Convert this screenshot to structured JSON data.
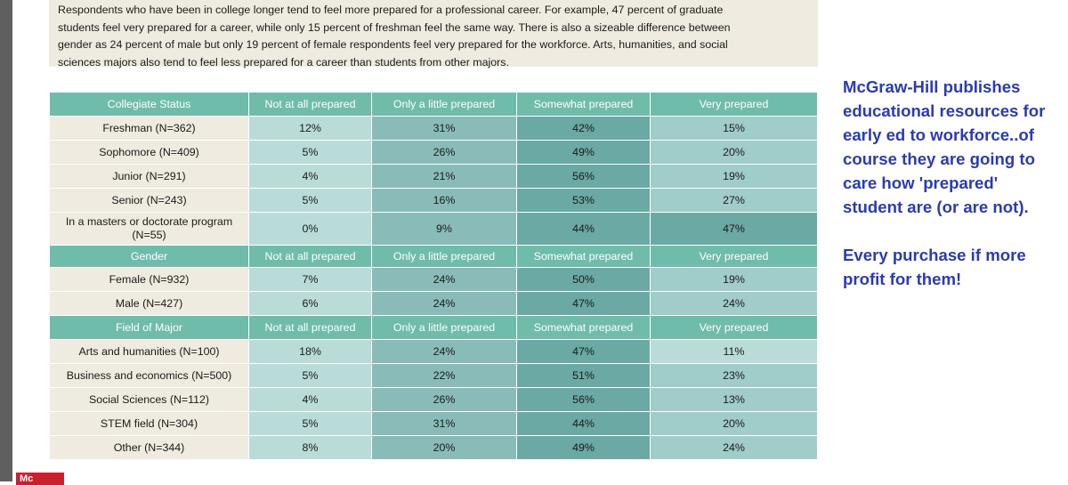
{
  "intro_lines": [
    "Respondents who have been in college longer tend to feel more prepared for a professional career. For example, 47 percent of graduate",
    "students feel very prepared for a career, while only 15 percent of freshman feel the same way. There is also a sizeable difference between",
    "gender as 24 percent of male but only 19 percent of female respondents feel very prepared for the workforce. Arts, humanities, and social",
    "sciences majors also tend to feel less prepared for a career than students from other majors."
  ],
  "columns": [
    "Not at all prepared",
    "Only a little prepared",
    "Somewhat prepared",
    "Very prepared"
  ],
  "sections": [
    {
      "title": "Collegiate Status",
      "rows": [
        {
          "label": "Freshman (N=362)",
          "values": [
            "12%",
            "31%",
            "42%",
            "15%"
          ]
        },
        {
          "label": "Sophomore (N=409)",
          "values": [
            "5%",
            "26%",
            "49%",
            "20%"
          ]
        },
        {
          "label": "Junior (N=291)",
          "values": [
            "4%",
            "21%",
            "56%",
            "19%"
          ]
        },
        {
          "label": "Senior (N=243)",
          "values": [
            "5%",
            "16%",
            "53%",
            "27%"
          ]
        },
        {
          "label": "In a masters or doctorate program (N=55)",
          "values": [
            "0%",
            "9%",
            "44%",
            "47%"
          ]
        }
      ]
    },
    {
      "title": "Gender",
      "rows": [
        {
          "label": "Female (N=932)",
          "values": [
            "7%",
            "24%",
            "50%",
            "19%"
          ]
        },
        {
          "label": "Male (N=427)",
          "values": [
            "6%",
            "24%",
            "47%",
            "24%"
          ]
        }
      ]
    },
    {
      "title": "Field of Major",
      "rows": [
        {
          "label": "Arts and humanities (N=100)",
          "values": [
            "18%",
            "24%",
            "47%",
            "11%"
          ]
        },
        {
          "label": "Business and economics (N=500)",
          "values": [
            "5%",
            "22%",
            "51%",
            "23%"
          ]
        },
        {
          "label": "Social Sciences (N=112)",
          "values": [
            "4%",
            "26%",
            "56%",
            "13%"
          ]
        },
        {
          "label": "STEM field (N=304)",
          "values": [
            "5%",
            "31%",
            "44%",
            "20%"
          ]
        },
        {
          "label": "Other (N=344)",
          "values": [
            "8%",
            "20%",
            "49%",
            "24%"
          ]
        }
      ]
    }
  ],
  "annotation": {
    "line1": "McGraw-Hill publishes educational resources for early ed to workforce..of course they are going to care how 'prepared' student are (or are not).",
    "line2": "Every purchase if more profit for them!"
  },
  "logo_text": "Mc",
  "colors": {
    "header": "#6fbcaa",
    "label_bg": "#efebe0",
    "not_at_all": "#b9dcd9",
    "only_little": "#89bcb8",
    "somewhat": "#6aa9a4",
    "very": "#a0ccc9",
    "red_text": "#e31c1c",
    "annotation_text": "#2b3bb0"
  }
}
